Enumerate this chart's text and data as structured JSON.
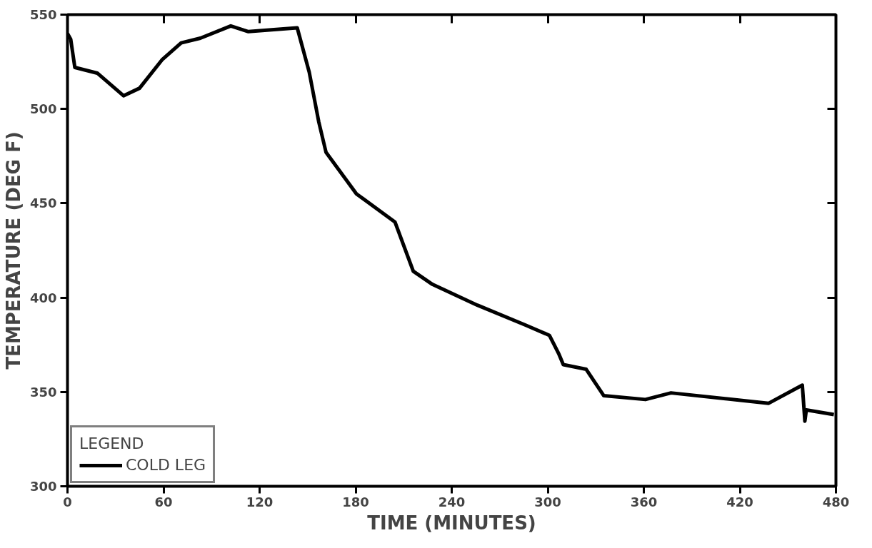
{
  "chart_data": {
    "type": "line",
    "xlabel": "TIME (MINUTES)",
    "ylabel": "TEMPERATURE (DEG F)",
    "legend_title": "LEGEND",
    "xlim": [
      0,
      480
    ],
    "xticks": [
      0,
      60,
      120,
      180,
      240,
      300,
      360,
      420,
      480
    ],
    "ylim": [
      300,
      550
    ],
    "yticks": [
      300,
      350,
      400,
      450,
      500,
      550
    ],
    "grid": false,
    "legend": "bottom left",
    "line_style": "solid",
    "series": [
      {
        "name": "COLD LEG",
        "color": "#000000",
        "x": [
          0,
          2,
          4.6,
          18.6,
          35,
          45,
          59,
          71,
          83,
          102,
          113,
          143.5,
          151,
          157,
          161.5,
          180.5,
          204.6,
          216,
          228,
          256,
          286,
          301,
          307,
          309.7,
          324,
          335,
          361,
          377,
          438,
          459,
          460.6,
          461.5,
          478.7
        ],
        "values": [
          540,
          537,
          522,
          519,
          507,
          511,
          526,
          535,
          537.5,
          544,
          541,
          543,
          519.5,
          493,
          477,
          455,
          440,
          414,
          407,
          396,
          385.5,
          380,
          370,
          364.5,
          362,
          348,
          346,
          349.5,
          344,
          353.6,
          334.5,
          340.5,
          338
        ]
      }
    ]
  }
}
